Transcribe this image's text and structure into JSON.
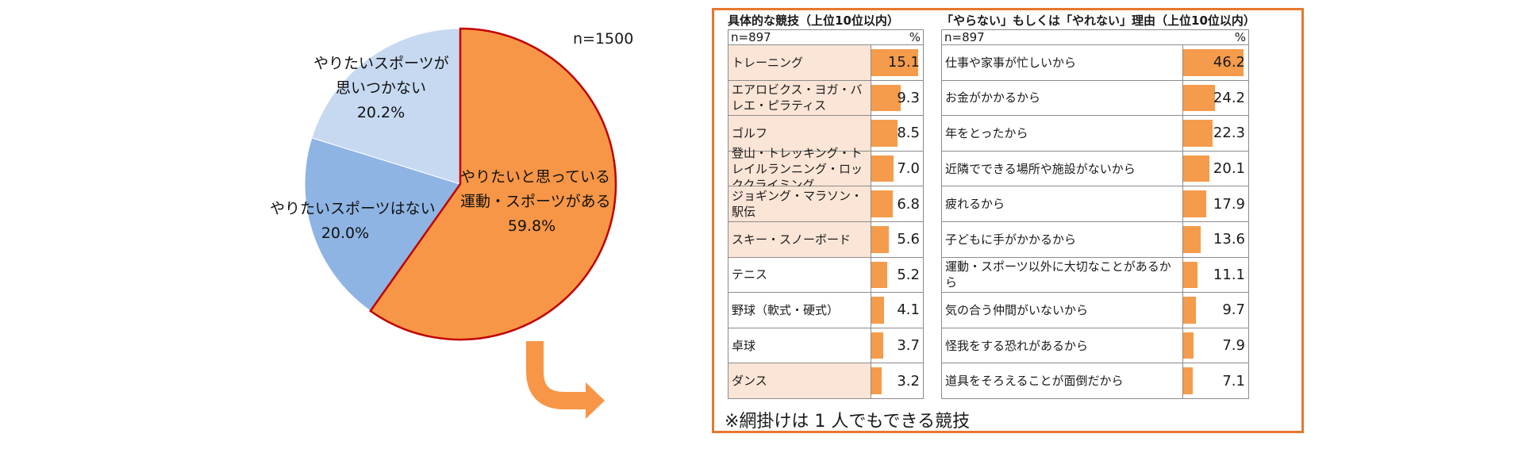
{
  "chart_data": [
    {
      "type": "pie",
      "n_label": "n=1500",
      "slices": [
        {
          "label_lines": [
            "やりたいと思っている",
            "運動・スポーツがある"
          ],
          "pct_label": "59.8%",
          "value": 59.8
        },
        {
          "label_lines": [
            "やりたいスポーツはない"
          ],
          "pct_label": "20.0%",
          "value": 20.0
        },
        {
          "label_lines": [
            "やりたいスポーツが",
            "思いつかない"
          ],
          "pct_label": "20.2%",
          "value": 20.2
        }
      ],
      "colors": {
        "main": "#f79646",
        "main_border": "#c00000",
        "second": "#8eb4e3",
        "third": "#c6d9f1"
      }
    },
    {
      "type": "bar",
      "title": "具体的な競技（上位10位以内）",
      "n_label": "n=897",
      "unit": "%",
      "rows": [
        {
          "name": "トレーニング",
          "value": 15.1,
          "value_label": "15.1",
          "shaded": true
        },
        {
          "name": "エアロビクス・ヨガ・バレエ・ピラティス",
          "value": 9.3,
          "value_label": "9.3",
          "shaded": true
        },
        {
          "name": "ゴルフ",
          "value": 8.5,
          "value_label": "8.5",
          "shaded": true
        },
        {
          "name": "登山・トレッキング・トレイルランニング・ロッククライミング",
          "value": 7.0,
          "value_label": "7.0",
          "shaded": true
        },
        {
          "name": "ジョギング・マラソン・駅伝",
          "value": 6.8,
          "value_label": "6.8",
          "shaded": true
        },
        {
          "name": "スキー・スノーボード",
          "value": 5.6,
          "value_label": "5.6",
          "shaded": true
        },
        {
          "name": "テニス",
          "value": 5.2,
          "value_label": "5.2",
          "shaded": false
        },
        {
          "name": "野球（軟式・硬式）",
          "value": 4.1,
          "value_label": "4.1",
          "shaded": false
        },
        {
          "name": "卓球",
          "value": 3.7,
          "value_label": "3.7",
          "shaded": false
        },
        {
          "name": "ダンス",
          "value": 3.2,
          "value_label": "3.2",
          "shaded": true
        }
      ]
    },
    {
      "type": "bar",
      "title": "「やらない」もしくは「やれない」理由（上位10位以内）",
      "n_label": "n=897",
      "unit": "%",
      "rows": [
        {
          "name": "仕事や家事が忙しいから",
          "value": 46.2,
          "value_label": "46.2"
        },
        {
          "name": "お金がかかるから",
          "value": 24.2,
          "value_label": "24.2"
        },
        {
          "name": "年をとったから",
          "value": 22.3,
          "value_label": "22.3"
        },
        {
          "name": "近隣でできる場所や施設がないから",
          "value": 20.1,
          "value_label": "20.1"
        },
        {
          "name": "疲れるから",
          "value": 17.9,
          "value_label": "17.9"
        },
        {
          "name": "子どもに手がかかるから",
          "value": 13.6,
          "value_label": "13.6"
        },
        {
          "name": "運動・スポーツ以外に大切なことがあるから",
          "value": 11.1,
          "value_label": "11.1"
        },
        {
          "name": "気の合う仲間がいないから",
          "value": 9.7,
          "value_label": "9.7"
        },
        {
          "name": "怪我をする恐れがあるから",
          "value": 7.9,
          "value_label": "7.9"
        },
        {
          "name": "道具をそろえることが面倒だから",
          "value": 7.1,
          "value_label": "7.1"
        }
      ]
    }
  ],
  "note": "※網掛けは 1 人でもできる競技",
  "bar_color": "#f59b4c",
  "shade_color": "#fbe5d6",
  "panel_border_color": "#e8772e"
}
